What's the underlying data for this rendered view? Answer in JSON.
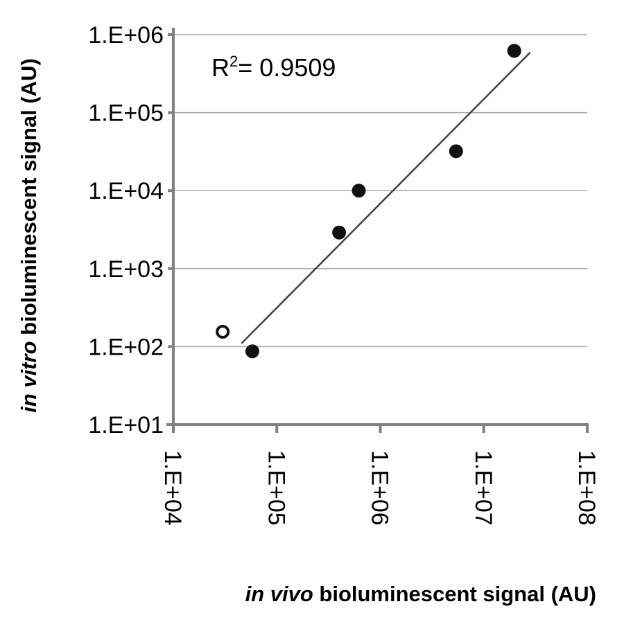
{
  "chart_data": {
    "type": "scatter",
    "title": "",
    "xlabel_italic": "in vivo",
    "xlabel_rest": " bioluminescent signal (AU)",
    "ylabel_italic": "in vitro",
    "ylabel_rest": " bioluminescent signal (AU)",
    "xscale": "log",
    "yscale": "log",
    "xlim": [
      10000,
      100000000
    ],
    "ylim": [
      10,
      1000000
    ],
    "xticks": [
      10000,
      100000,
      1000000,
      10000000,
      100000000
    ],
    "xtick_labels": [
      "1.E+04",
      "1.E+05",
      "1.E+06",
      "1.E+07",
      "1.E+08"
    ],
    "yticks": [
      10,
      100,
      1000,
      10000,
      100000,
      1000000
    ],
    "ytick_labels": [
      "1.E+01",
      "1.E+02",
      "1.E+03",
      "1.E+04",
      "1.E+05",
      "1.E+06"
    ],
    "grid": "horizontal",
    "annotation": {
      "prefix": "R",
      "sup": "2",
      "text": "= 0.9509"
    },
    "points": [
      {
        "x": 30000,
        "y": 155,
        "style": "open"
      },
      {
        "x": 58000,
        "y": 87,
        "style": "filled"
      },
      {
        "x": 400000,
        "y": 2900,
        "style": "filled"
      },
      {
        "x": 620000,
        "y": 10000,
        "style": "filled"
      },
      {
        "x": 5400000,
        "y": 32000,
        "style": "filled"
      },
      {
        "x": 19700000,
        "y": 620000,
        "style": "filled"
      }
    ],
    "trendline": {
      "x": [
        45600,
        28000000
      ],
      "y": [
        110,
        590000
      ]
    },
    "colors": {
      "point": "#111111",
      "axis": "#808080",
      "grid": "#a6a6a6",
      "trend": "#404040"
    }
  }
}
